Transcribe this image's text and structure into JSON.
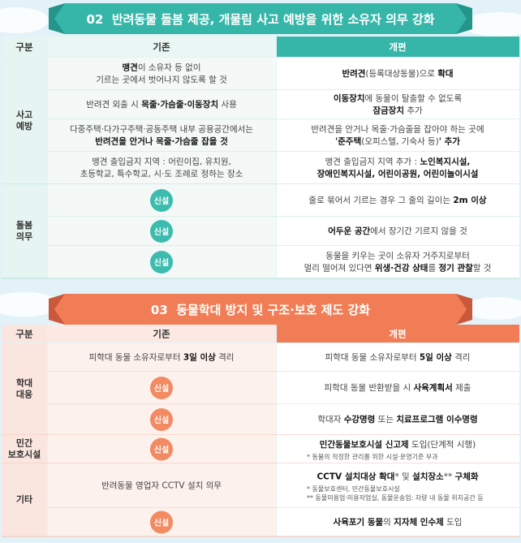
{
  "sections": [
    {
      "number": "02",
      "title": "반려동물 돌봄 제공, 개물림 사고 예방을 위한 소유자 의무 강화",
      "color": "#36b6a9",
      "header": [
        "구분",
        "기존",
        "개편"
      ],
      "groups": [
        {
          "label": [
            "사고",
            "예방"
          ],
          "rows": [
            {
              "before": {
                "lines": [
                  [
                    {
                      "t": "맹견",
                      "b": true
                    },
                    {
                      "t": "이 소유자 등 없이"
                    }
                  ],
                  [
                    {
                      "t": "기르는 곳에서 벗어나지 않도록 할 것"
                    }
                  ]
                ]
              },
              "after": {
                "lines": [
                  [
                    {
                      "t": "반려견",
                      "b": true
                    },
                    {
                      "t": "(등록대상동물)으로 "
                    },
                    {
                      "t": "확대",
                      "b": true
                    }
                  ]
                ]
              }
            },
            {
              "before": {
                "lines": [
                  [
                    {
                      "t": "반려견 외출 시 "
                    },
                    {
                      "t": "목줄·가슴줄·이동장치",
                      "b": true
                    },
                    {
                      "t": " 사용"
                    }
                  ]
                ]
              },
              "after": {
                "lines": [
                  [
                    {
                      "t": "이동장치",
                      "b": true
                    },
                    {
                      "t": "에 동물이 탈출할 수 없도록"
                    }
                  ],
                  [
                    {
                      "t": "잠금장치",
                      "b": true
                    },
                    {
                      "t": " 추가"
                    }
                  ]
                ]
              }
            },
            {
              "before": {
                "lines": [
                  [
                    {
                      "t": "다중주택·다가구주택·공동주택 내부 공용공간에서는"
                    }
                  ],
                  [
                    {
                      "t": "반려견을 안거나 목줄·가슴줄 잡을 것",
                      "b": true
                    }
                  ]
                ]
              },
              "after": {
                "lines": [
                  [
                    {
                      "t": "반려견을 안거나 목줄·가슴줄을 잡아야 하는 곳에"
                    }
                  ],
                  [
                    {
                      "t": "'준주택",
                      "b": true
                    },
                    {
                      "t": "(오피스텔, 기숙사 등)"
                    },
                    {
                      "t": "' 추가",
                      "b": true
                    }
                  ]
                ]
              }
            },
            {
              "before": {
                "lines": [
                  [
                    {
                      "t": "맹견 출입금지 지역 : 어린이집, 유치원,"
                    }
                  ],
                  [
                    {
                      "t": "초등학교, 특수학교, 시·도 조례로 정하는 장소"
                    }
                  ]
                ]
              },
              "after": {
                "lines": [
                  [
                    {
                      "t": "맹견 출입금지 지역 추가 : "
                    },
                    {
                      "t": "노인복지시설,",
                      "b": true
                    }
                  ],
                  [
                    {
                      "t": "장애인복지시설, 어린이공원, 어린이놀이시설",
                      "b": true
                    }
                  ]
                ]
              }
            }
          ]
        },
        {
          "label": [
            "돌봄",
            "의무"
          ],
          "rows": [
            {
              "before": {
                "badge": "신설"
              },
              "after": {
                "lines": [
                  [
                    {
                      "t": "줄로 묶어서 기르는 경우 그 줄의 길이는 "
                    },
                    {
                      "t": "2m 이상",
                      "b": true
                    }
                  ]
                ]
              }
            },
            {
              "before": {
                "badge": "신설"
              },
              "after": {
                "lines": [
                  [
                    {
                      "t": "어두운 공간",
                      "b": true
                    },
                    {
                      "t": "에서 장기간 기르지 않을 것"
                    }
                  ]
                ]
              }
            },
            {
              "before": {
                "badge": "신설"
              },
              "after": {
                "lines": [
                  [
                    {
                      "t": "동물을 키우는 곳이 소유자 거주지로부터"
                    }
                  ],
                  [
                    {
                      "t": "멀리 떨어져 있다면 "
                    },
                    {
                      "t": "위생·건강 상태",
                      "b": true
                    },
                    {
                      "t": "를 "
                    },
                    {
                      "t": "정기 관찰",
                      "b": true
                    },
                    {
                      "t": "할 것"
                    }
                  ]
                ]
              }
            }
          ]
        }
      ]
    },
    {
      "number": "03",
      "title": "동물학대 방지 및 구조·보호 제도 강화",
      "color": "#f07d55",
      "header": [
        "구분",
        "기존",
        "개편"
      ],
      "groups": [
        {
          "label": [
            "학대",
            "대응"
          ],
          "rows": [
            {
              "before": {
                "lines": [
                  [
                    {
                      "t": "피학대 동물 소유자로부터 "
                    },
                    {
                      "t": "3일 이상",
                      "b": true
                    },
                    {
                      "t": " 격리"
                    }
                  ]
                ]
              },
              "after": {
                "lines": [
                  [
                    {
                      "t": "피학대 동물 소유자로부터 "
                    },
                    {
                      "t": "5일 이상",
                      "b": true
                    },
                    {
                      "t": " 격리"
                    }
                  ]
                ]
              }
            },
            {
              "before": {
                "badge": "신설"
              },
              "after": {
                "lines": [
                  [
                    {
                      "t": "피학대 동물 반환받을 시 "
                    },
                    {
                      "t": "사육계획서",
                      "b": true
                    },
                    {
                      "t": " 제출"
                    }
                  ]
                ]
              }
            },
            {
              "before": {
                "badge": "신설"
              },
              "after": {
                "lines": [
                  [
                    {
                      "t": "학대자 "
                    },
                    {
                      "t": "수강명령",
                      "b": true
                    },
                    {
                      "t": " 또는 "
                    },
                    {
                      "t": "치료프로그램 이수명령",
                      "b": true
                    }
                  ]
                ]
              }
            }
          ]
        },
        {
          "label": [
            "민간",
            "보호시설"
          ],
          "rows": [
            {
              "before": {
                "badge": "신설"
              },
              "after": {
                "lines": [
                  [
                    {
                      "t": "민간동물보호시설 신고제",
                      "b": true
                    },
                    {
                      "t": " 도입(단계적 시행)"
                    }
                  ]
                ],
                "notes": [
                  "* 동물의 적정한 관리를 위한 시설·운영기준 부과"
                ]
              }
            }
          ]
        },
        {
          "label": [
            "기타"
          ],
          "rows": [
            {
              "before": {
                "lines": [
                  [
                    {
                      "t": "반려동물 영업자 CCTV 설치 의무"
                    }
                  ]
                ]
              },
              "after": {
                "lines": [
                  [
                    {
                      "t": "CCTV 설치대상 확대",
                      "b": true
                    },
                    {
                      "t": "* 및 "
                    },
                    {
                      "t": "설치장소",
                      "b": true
                    },
                    {
                      "t": "** "
                    },
                    {
                      "t": "구체화",
                      "b": true
                    }
                  ]
                ],
                "notes": [
                  "* 동물보호센터, 민간동물보호시설",
                  "** 동물미용업·미용작업실, 동물운송업: 차량 내 동물 위치공간 등"
                ]
              }
            },
            {
              "before": {
                "badge": "신설"
              },
              "after": {
                "lines": [
                  [
                    {
                      "t": "사육포기 동물",
                      "b": true
                    },
                    {
                      "t": "의 "
                    },
                    {
                      "t": "지자체 인수제",
                      "b": true
                    },
                    {
                      "t": " 도입"
                    }
                  ]
                ]
              }
            }
          ]
        }
      ]
    }
  ]
}
